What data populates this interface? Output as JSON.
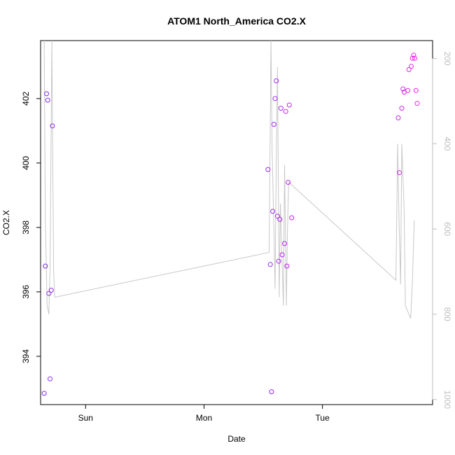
{
  "chart_data": {
    "type": "scatter",
    "title": "ATOM1 North_America CO2.X",
    "xlabel": "Date",
    "ylabel": "CO2.X",
    "x_ticks": [
      {
        "label": "Sun",
        "x": 1.0
      },
      {
        "label": "Mon",
        "x": 2.0
      },
      {
        "label": "Tue",
        "x": 3.0
      }
    ],
    "xlim": [
      0.62,
      3.93
    ],
    "ylim": [
      392.5,
      403.8
    ],
    "y_ticks": [
      394,
      396,
      398,
      400,
      402
    ],
    "right_axis": {
      "color": "#bebebe",
      "ticks": [
        200,
        400,
        600,
        800,
        1000
      ],
      "ylim": [
        1012,
        158
      ]
    },
    "colors": {
      "axis": "#000000",
      "line": "#c8c8c8",
      "point_start": "#7b2cf0",
      "point_end": "#f020e8"
    },
    "points": [
      {
        "x": 0.65,
        "y": 392.85
      },
      {
        "x": 0.66,
        "y": 396.8
      },
      {
        "x": 0.67,
        "y": 402.15
      },
      {
        "x": 0.68,
        "y": 401.95
      },
      {
        "x": 0.69,
        "y": 395.95
      },
      {
        "x": 0.7,
        "y": 393.3
      },
      {
        "x": 0.71,
        "y": 396.05
      },
      {
        "x": 0.72,
        "y": 401.15
      },
      {
        "x": 2.54,
        "y": 399.8
      },
      {
        "x": 2.56,
        "y": 396.85
      },
      {
        "x": 2.57,
        "y": 392.9
      },
      {
        "x": 2.58,
        "y": 398.5
      },
      {
        "x": 2.59,
        "y": 401.2
      },
      {
        "x": 2.6,
        "y": 402.0
      },
      {
        "x": 2.61,
        "y": 402.55
      },
      {
        "x": 2.62,
        "y": 398.35
      },
      {
        "x": 2.63,
        "y": 396.95
      },
      {
        "x": 2.64,
        "y": 398.25
      },
      {
        "x": 2.65,
        "y": 401.7
      },
      {
        "x": 2.66,
        "y": 397.15
      },
      {
        "x": 2.68,
        "y": 397.5
      },
      {
        "x": 2.69,
        "y": 401.6
      },
      {
        "x": 2.7,
        "y": 396.8
      },
      {
        "x": 2.71,
        "y": 399.4
      },
      {
        "x": 2.72,
        "y": 401.8
      },
      {
        "x": 2.74,
        "y": 398.3
      },
      {
        "x": 3.64,
        "y": 401.4
      },
      {
        "x": 3.65,
        "y": 399.7
      },
      {
        "x": 3.67,
        "y": 401.7
      },
      {
        "x": 3.68,
        "y": 402.3
      },
      {
        "x": 3.69,
        "y": 402.2
      },
      {
        "x": 3.72,
        "y": 402.25
      },
      {
        "x": 3.73,
        "y": 402.9
      },
      {
        "x": 3.75,
        "y": 403.0
      },
      {
        "x": 3.76,
        "y": 403.25
      },
      {
        "x": 3.77,
        "y": 403.35
      },
      {
        "x": 3.78,
        "y": 403.25
      },
      {
        "x": 3.79,
        "y": 402.25
      },
      {
        "x": 3.8,
        "y": 401.85
      }
    ],
    "line_series": {
      "axis": "right",
      "points": [
        {
          "x": 0.65,
          "y": 158
        },
        {
          "x": 0.66,
          "y": 580
        },
        {
          "x": 0.675,
          "y": 780
        },
        {
          "x": 0.69,
          "y": 800
        },
        {
          "x": 0.7,
          "y": 690
        },
        {
          "x": 0.715,
          "y": 158
        },
        {
          "x": 0.73,
          "y": 700
        },
        {
          "x": 0.74,
          "y": 760
        },
        {
          "x": 2.55,
          "y": 655
        },
        {
          "x": 2.565,
          "y": 158
        },
        {
          "x": 2.575,
          "y": 420
        },
        {
          "x": 2.59,
          "y": 600
        },
        {
          "x": 2.6,
          "y": 740
        },
        {
          "x": 2.61,
          "y": 430
        },
        {
          "x": 2.62,
          "y": 220
        },
        {
          "x": 2.635,
          "y": 760
        },
        {
          "x": 2.645,
          "y": 540
        },
        {
          "x": 2.655,
          "y": 640
        },
        {
          "x": 2.67,
          "y": 780
        },
        {
          "x": 2.68,
          "y": 450
        },
        {
          "x": 2.695,
          "y": 780
        },
        {
          "x": 2.705,
          "y": 600
        },
        {
          "x": 2.715,
          "y": 490
        },
        {
          "x": 3.62,
          "y": 720
        },
        {
          "x": 3.635,
          "y": 400
        },
        {
          "x": 3.645,
          "y": 560
        },
        {
          "x": 3.66,
          "y": 730
        },
        {
          "x": 3.67,
          "y": 400
        },
        {
          "x": 3.69,
          "y": 560
        },
        {
          "x": 3.7,
          "y": 780
        },
        {
          "x": 3.73,
          "y": 800
        },
        {
          "x": 3.745,
          "y": 810
        },
        {
          "x": 3.76,
          "y": 720
        },
        {
          "x": 3.775,
          "y": 580
        }
      ]
    }
  }
}
